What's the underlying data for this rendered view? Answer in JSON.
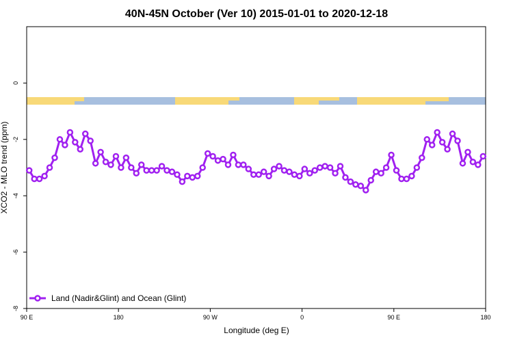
{
  "chart_data": {
    "type": "line",
    "title": "40N-45N October (Ver 10)   2015-01-01 to 2020-12-18",
    "x_label": "Longitude (deg E)",
    "y_label": "XCO2 - MLO trend (ppm)",
    "xlim": [
      90,
      540
    ],
    "ylim": [
      -8,
      2
    ],
    "xticks": [
      {
        "value": 90,
        "label": "90 E"
      },
      180,
      {
        "value": 270,
        "label": "90 W"
      },
      {
        "value": 360,
        "label": "0"
      },
      {
        "value": 450,
        "label": "90 E"
      },
      {
        "value": 540,
        "label": "180"
      }
    ],
    "yticks": [
      -8,
      -6,
      -4,
      -2,
      0
    ],
    "legend": "bottom-left",
    "x": [
      92.5,
      97.5,
      102.5,
      107.5,
      112.5,
      117.5,
      122.5,
      127.5,
      132.5,
      137.5,
      142.5,
      147.5,
      152.5,
      157.5,
      162.5,
      167.5,
      172.5,
      177.5,
      182.5,
      187.5,
      192.5,
      197.5,
      202.5,
      207.5,
      212.5,
      217.5,
      222.5,
      227.5,
      232.5,
      237.5,
      242.5,
      247.5,
      252.5,
      257.5,
      262.5,
      267.5,
      272.5,
      277.5,
      282.5,
      287.5,
      292.5,
      297.5,
      302.5,
      307.5,
      312.5,
      317.5,
      322.5,
      327.5,
      332.5,
      337.5,
      342.5,
      347.5,
      352.5,
      357.5,
      362.5,
      367.5,
      372.5,
      377.5,
      382.5,
      387.5,
      392.5,
      397.5,
      402.5,
      407.5,
      412.5,
      417.5,
      422.5,
      427.5,
      432.5,
      437.5,
      442.5,
      447.5,
      452.5,
      457.5,
      462.5,
      467.5,
      472.5,
      477.5,
      482.5,
      487.5,
      492.5,
      497.5,
      502.5,
      507.5,
      512.5,
      517.5,
      522.5,
      527.5,
      532.5,
      537.5
    ],
    "series": [
      {
        "name": "Land (Nadir&Glint) and Ocean (Glint)",
        "color": "#a020f0",
        "values": [
          -3.1,
          -3.4,
          -3.4,
          -3.3,
          -3.0,
          -2.65,
          -2.0,
          -2.2,
          -1.75,
          -2.1,
          -2.35,
          -1.8,
          -2.05,
          -2.85,
          -2.45,
          -2.8,
          -2.9,
          -2.6,
          -3.0,
          -2.65,
          -3.0,
          -3.2,
          -2.9,
          -3.1,
          -3.1,
          -3.1,
          -2.95,
          -3.1,
          -3.15,
          -3.25,
          -3.5,
          -3.3,
          -3.35,
          -3.3,
          -3.0,
          -2.5,
          -2.6,
          -2.75,
          -2.7,
          -2.9,
          -2.55,
          -2.9,
          -2.9,
          -3.05,
          -3.25,
          -3.25,
          -3.15,
          -3.3,
          -3.05,
          -2.95,
          -3.1,
          -3.15,
          -3.25,
          -3.3,
          -3.05,
          -3.2,
          -3.1,
          -3.0,
          -2.95,
          -3.0,
          -3.2,
          -2.95,
          -3.35,
          -3.5,
          -3.6,
          -3.65,
          -3.8,
          -3.45,
          -3.15,
          -3.2,
          -3.0,
          -2.55,
          -3.1,
          -3.4,
          -3.4,
          -3.3,
          -3.0,
          -2.65,
          -2.0,
          -2.2,
          -1.75,
          -2.1,
          -2.35,
          -1.8,
          -2.05,
          -2.85,
          -2.45,
          -2.8,
          -2.9,
          -2.6
        ]
      }
    ]
  }
}
